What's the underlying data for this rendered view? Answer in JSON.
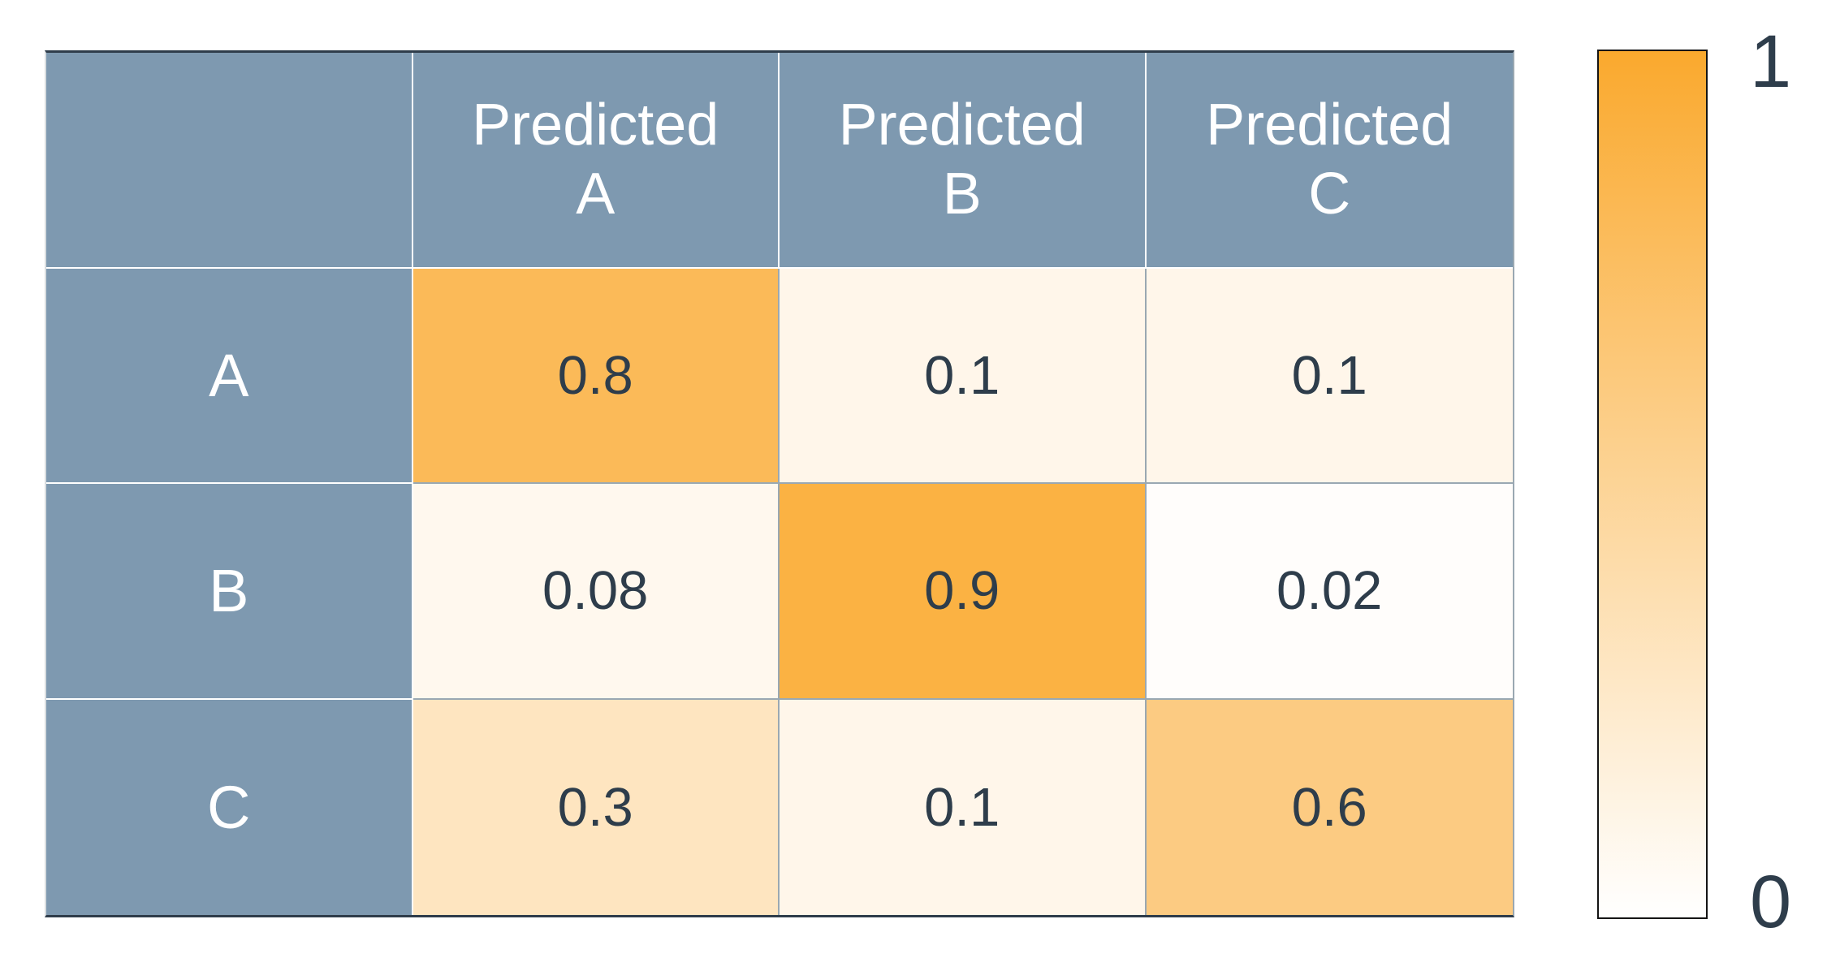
{
  "chart_data": {
    "type": "heatmap",
    "x_labels": [
      "Predicted A",
      "Predicted B",
      "Predicted C"
    ],
    "y_labels": [
      "A",
      "B",
      "C"
    ],
    "values": [
      [
        0.8,
        0.1,
        0.1
      ],
      [
        0.08,
        0.9,
        0.02
      ],
      [
        0.3,
        0.1,
        0.6
      ]
    ],
    "value_range": [
      0,
      1
    ],
    "legend_position": "right-colorbar",
    "grid": "on"
  },
  "table": {
    "corner_label": "",
    "header_labels": [
      "Predicted\nA",
      "Predicted\nB",
      "Predicted\nC"
    ],
    "row_labels": [
      "A",
      "B",
      "C"
    ],
    "cell_text": [
      [
        "0.8",
        "0.1",
        "0.1"
      ],
      [
        "0.08",
        "0.9",
        "0.02"
      ],
      [
        "0.3",
        "0.1",
        "0.6"
      ]
    ]
  },
  "colorbar": {
    "top_label": "1",
    "bottom_label": "0"
  },
  "colors": {
    "header_bg": "#7e99b0",
    "header_text": "#ffffff",
    "value_text": "#2e3d4b",
    "grid_line_data": "#9aa8b2",
    "grid_line_blue": "#ffffff",
    "dark_border": "#2e3c4a",
    "left_border": "#d9dde0",
    "right_border": "#9aa8b2",
    "cmap_low": "#ffffff",
    "cmap_high": "#faa92e",
    "colorbar_border": "#141414"
  }
}
